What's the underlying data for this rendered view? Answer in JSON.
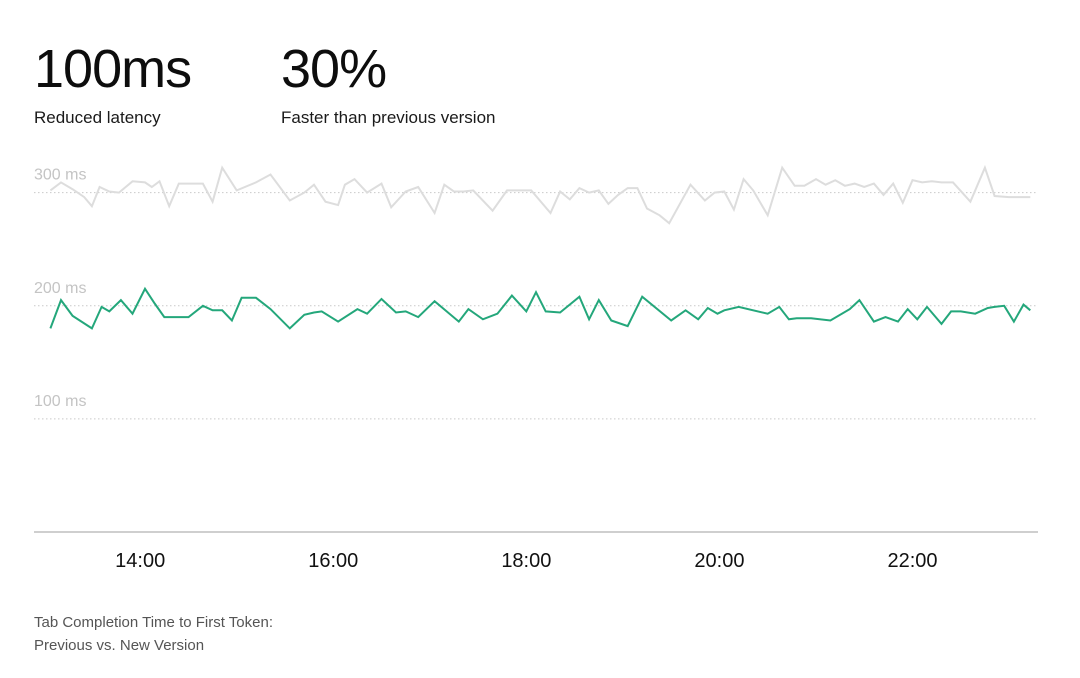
{
  "stats": [
    {
      "value": "100ms",
      "label": "Reduced latency"
    },
    {
      "value": "30%",
      "label": "Faster than previous version"
    }
  ],
  "caption": {
    "line1": "Tab Completion Time to First Token:",
    "line2": "Previous vs. New Version"
  },
  "chart_data": {
    "type": "line",
    "x_range_hours": [
      12.9,
      23.3
    ],
    "x_ticks": [
      {
        "value": 14,
        "label": "14:00"
      },
      {
        "value": 16,
        "label": "16:00"
      },
      {
        "value": 18,
        "label": "18:00"
      },
      {
        "value": 20,
        "label": "20:00"
      },
      {
        "value": 22,
        "label": "22:00"
      }
    ],
    "y_range": [
      0,
      320
    ],
    "y_ticks": [
      {
        "value": 300,
        "label": "300 ms"
      },
      {
        "value": 200,
        "label": "200 ms"
      },
      {
        "value": 100,
        "label": "100 ms"
      }
    ],
    "grid": "dotted horizontal",
    "series": [
      {
        "color": "#dddddd",
        "x": [
          13.07,
          13.18,
          13.3,
          13.42,
          13.5,
          13.58,
          13.68,
          13.78,
          13.92,
          14.05,
          14.12,
          14.2,
          14.3,
          14.4,
          14.55,
          14.65,
          14.75,
          14.85,
          15.0,
          15.2,
          15.35,
          15.55,
          15.7,
          15.8,
          15.92,
          16.05,
          16.12,
          16.22,
          16.35,
          16.5,
          16.6,
          16.75,
          16.88,
          17.05,
          17.15,
          17.25,
          17.35,
          17.45,
          17.65,
          17.8,
          17.92,
          18.05,
          18.25,
          18.35,
          18.45,
          18.55,
          18.65,
          18.75,
          18.85,
          18.95,
          19.05,
          19.15,
          19.25,
          19.38,
          19.48,
          19.7,
          19.85,
          19.95,
          20.05,
          20.15,
          20.25,
          20.35,
          20.5,
          20.65,
          20.78,
          20.88,
          21.0,
          21.1,
          21.2,
          21.3,
          21.4,
          21.5,
          21.6,
          21.7,
          21.8,
          21.9,
          22.0,
          22.1,
          22.2,
          22.3,
          22.42,
          22.6,
          22.75,
          22.85,
          23.0,
          23.12,
          23.22
        ],
        "values": [
          302,
          309,
          303,
          296,
          288,
          305,
          301,
          300,
          310,
          309,
          305,
          310,
          288,
          308,
          308,
          308,
          292,
          322,
          302,
          309,
          316,
          293,
          300,
          307,
          292,
          289,
          307,
          312,
          300,
          308,
          287,
          301,
          305,
          282,
          307,
          301,
          301,
          302,
          284,
          302,
          302,
          302,
          282,
          301,
          294,
          304,
          300,
          302,
          290,
          298,
          304,
          304,
          286,
          280,
          273,
          307,
          293,
          300,
          301,
          285,
          312,
          302,
          280,
          322,
          306,
          306,
          312,
          307,
          311,
          306,
          308,
          305,
          308,
          298,
          308,
          291,
          311,
          309,
          310,
          309,
          309,
          292,
          322,
          297,
          296,
          296,
          296
        ]
      },
      {
        "color": "#24a77b",
        "x": [
          13.07,
          13.18,
          13.3,
          13.5,
          13.6,
          13.68,
          13.8,
          13.92,
          14.05,
          14.15,
          14.25,
          14.5,
          14.65,
          14.75,
          14.85,
          14.95,
          15.05,
          15.2,
          15.35,
          15.55,
          15.7,
          15.8,
          15.88,
          16.05,
          16.25,
          16.35,
          16.5,
          16.65,
          16.75,
          16.88,
          17.05,
          17.3,
          17.4,
          17.55,
          17.7,
          17.85,
          18.0,
          18.1,
          18.2,
          18.35,
          18.55,
          18.65,
          18.75,
          18.88,
          19.05,
          19.2,
          19.5,
          19.65,
          19.78,
          19.88,
          19.98,
          20.05,
          20.2,
          20.5,
          20.62,
          20.72,
          20.8,
          20.95,
          21.15,
          21.35,
          21.45,
          21.6,
          21.72,
          21.85,
          21.95,
          22.05,
          22.15,
          22.3,
          22.4,
          22.5,
          22.65,
          22.78,
          22.85,
          22.95,
          23.05,
          23.15,
          23.22
        ],
        "values": [
          180,
          205,
          191,
          180,
          199,
          195,
          205,
          193,
          215,
          202,
          190,
          190,
          200,
          196,
          196,
          187,
          207,
          207,
          197,
          180,
          192,
          194,
          195,
          186,
          197,
          193,
          206,
          194,
          195,
          190,
          204,
          186,
          197,
          188,
          193,
          209,
          195,
          212,
          195,
          194,
          208,
          188,
          205,
          187,
          182,
          208,
          187,
          196,
          188,
          198,
          193,
          196,
          199,
          193,
          199,
          188,
          189,
          189,
          187,
          197,
          205,
          186,
          190,
          186,
          197,
          188,
          199,
          184,
          195,
          195,
          193,
          198,
          199,
          200,
          186,
          201,
          196
        ]
      }
    ]
  }
}
